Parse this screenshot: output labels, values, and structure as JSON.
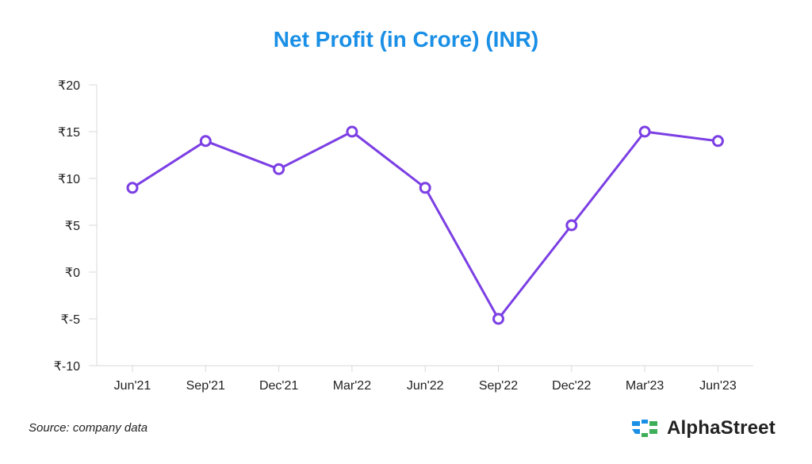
{
  "chart_data": {
    "type": "line",
    "title": "Net Profit (in Crore) (INR)",
    "categories": [
      "Jun'21",
      "Sep'21",
      "Dec'21",
      "Mar'22",
      "Jun'22",
      "Sep'22",
      "Dec'22",
      "Mar'23",
      "Jun'23"
    ],
    "series": [
      {
        "values": [
          9,
          14,
          11,
          15,
          9,
          -5,
          5,
          15,
          14
        ]
      }
    ],
    "ylim": [
      -10,
      20
    ],
    "yticks": [
      -10,
      -5,
      0,
      5,
      10,
      15,
      20
    ],
    "ytick_labels": [
      "₹-10",
      "₹-5",
      "₹0",
      "₹5",
      "₹10",
      "₹15",
      "₹20"
    ],
    "xlabel": "",
    "ylabel": "",
    "grid": false,
    "legend": "none",
    "line_color": "#7b3fe4",
    "marker_fill": "#ffffff"
  },
  "footer": {
    "source": "Source: company data",
    "brand": "AlphaStreet"
  },
  "colors": {
    "title": "#1a8fe6",
    "brand_blue": "#1a8fe6",
    "brand_green": "#3fae5a"
  },
  "icons": {
    "brand_logo": "alphastreet-logo-icon"
  }
}
